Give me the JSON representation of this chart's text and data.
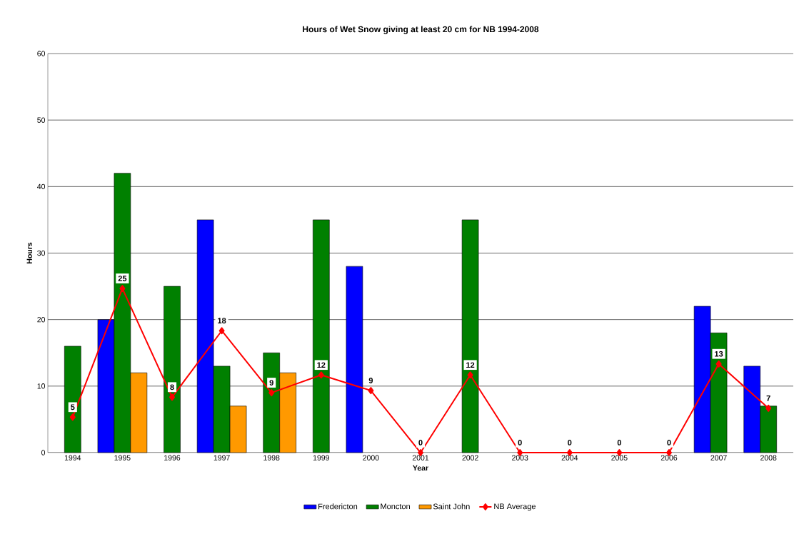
{
  "chart_data": {
    "type": "bar",
    "title": "Hours of Wet Snow giving at least 20 cm for NB 1994-2008",
    "xlabel": "Year",
    "ylabel": "Hours",
    "categories": [
      "1994",
      "1995",
      "1996",
      "1997",
      "1998",
      "1999",
      "2000",
      "2001",
      "2002",
      "2003",
      "2004",
      "2005",
      "2006",
      "2007",
      "2008"
    ],
    "series": [
      {
        "name": "Fredericton",
        "color": "#0000ff",
        "values": [
          null,
          20,
          null,
          35,
          null,
          null,
          28,
          null,
          null,
          null,
          null,
          null,
          null,
          22,
          13
        ]
      },
      {
        "name": "Moncton",
        "color": "#008000",
        "values": [
          16,
          42,
          25,
          13,
          15,
          35,
          null,
          null,
          35,
          null,
          null,
          null,
          null,
          18,
          7
        ]
      },
      {
        "name": "Saint John",
        "color": "#ff9900",
        "values": [
          null,
          12,
          null,
          7,
          12,
          null,
          null,
          null,
          null,
          null,
          null,
          null,
          null,
          null,
          null
        ]
      },
      {
        "name": "NB Average",
        "type": "line",
        "color": "#ff0000",
        "marker": "diamond",
        "line_style": "solid",
        "values": [
          5.33,
          24.67,
          8.33,
          18.33,
          9,
          11.67,
          9.33,
          0,
          11.67,
          0,
          0,
          0,
          0,
          13.33,
          6.67
        ],
        "value_labels": [
          "5",
          "25",
          "8",
          "18",
          "9",
          "12",
          "9",
          "0",
          "12",
          "0",
          "0",
          "0",
          "0",
          "13",
          "7"
        ]
      }
    ],
    "ylim": [
      0,
      60
    ],
    "yticks": [
      0,
      10,
      20,
      30,
      40,
      50,
      60
    ],
    "grid": "y",
    "legend": "bottom"
  }
}
